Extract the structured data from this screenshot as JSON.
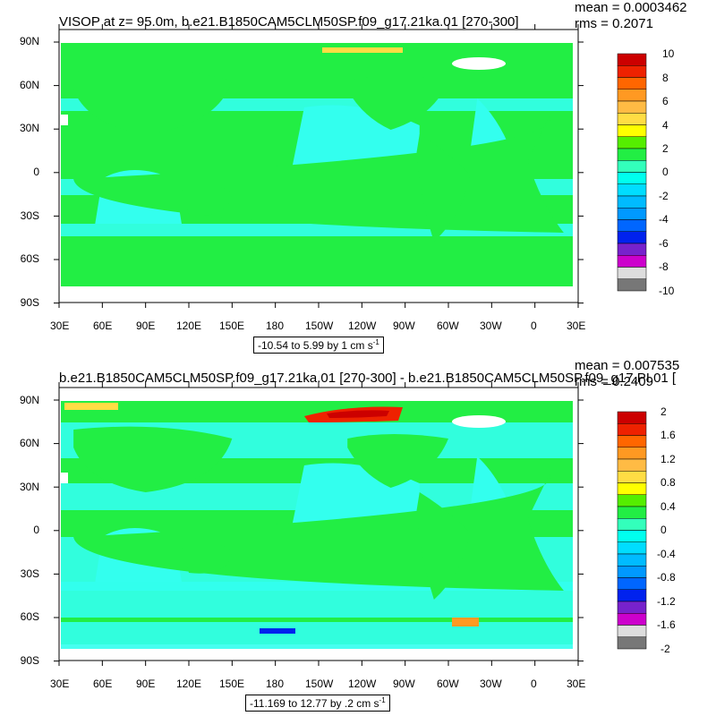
{
  "colors": {
    "land": "#22ee44",
    "ocean_light": "#33ffee",
    "ice": "#ffffff",
    "frame": "#000000"
  },
  "panels": [
    {
      "title": "VISOP at z=  95.0m, b.e21.B1850CAM5CLM50SP.f09_g17.21ka.01 [270-300]",
      "mean": "mean = 0.0003462",
      "rms": "rms = 0.2071",
      "lat_labels": [
        "90N",
        "60N",
        "30N",
        "0",
        "30S",
        "60S",
        "90S"
      ],
      "lon_labels": [
        "30E",
        "60E",
        "90E",
        "120E",
        "150E",
        "180",
        "150W",
        "120W",
        "90W",
        "60W",
        "30W",
        "0",
        "30E"
      ],
      "range_text": "-10.54 to 5.99 by 1 cm s",
      "range_sup": "-1",
      "colorbar_labels": [
        "10",
        "8",
        "6",
        "4",
        "2",
        "0",
        "-2",
        "-4",
        "-6",
        "-8",
        "-10"
      ],
      "colorbar_colors": [
        "#cc0000",
        "#ee2200",
        "#ff6600",
        "#ff9922",
        "#ffbb44",
        "#ffdd44",
        "#ffff00",
        "#55ee00",
        "#22ee44",
        "#33ffbb",
        "#00ffee",
        "#00ddff",
        "#00bbff",
        "#0099ff",
        "#0066ff",
        "#0022ee",
        "#7722cc",
        "#cc00cc",
        "#dddddd",
        "#777777"
      ]
    },
    {
      "title": "b.e21.B1850CAM5CLM50SP.f09_g17.21ka.01 [270-300] - b.e21.B1850CAM5CLM50SP.f09_g17.PI.01 [",
      "mean": "mean = 0.007535",
      "rms": "rms = 0.2409",
      "lat_labels": [
        "90N",
        "60N",
        "30N",
        "0",
        "30S",
        "60S",
        "90S"
      ],
      "lon_labels": [
        "30E",
        "60E",
        "90E",
        "120E",
        "150E",
        "180",
        "150W",
        "120W",
        "90W",
        "60W",
        "30W",
        "0",
        "30E"
      ],
      "range_text": "-11.169 to 12.77 by .2 cm s",
      "range_sup": "-1",
      "colorbar_labels": [
        "2",
        "1.6",
        "1.2",
        "0.8",
        "0.4",
        "0",
        "-0.4",
        "-0.8",
        "-1.2",
        "-1.6",
        "-2"
      ],
      "colorbar_colors": [
        "#cc0000",
        "#ee2200",
        "#ff6600",
        "#ff9922",
        "#ffbb44",
        "#ffdd44",
        "#ffff00",
        "#55ee00",
        "#22ee44",
        "#33ffbb",
        "#00ffee",
        "#00ddff",
        "#00bbff",
        "#0099ff",
        "#0066ff",
        "#0022ee",
        "#7722cc",
        "#cc00cc",
        "#dddddd",
        "#777777"
      ]
    }
  ]
}
